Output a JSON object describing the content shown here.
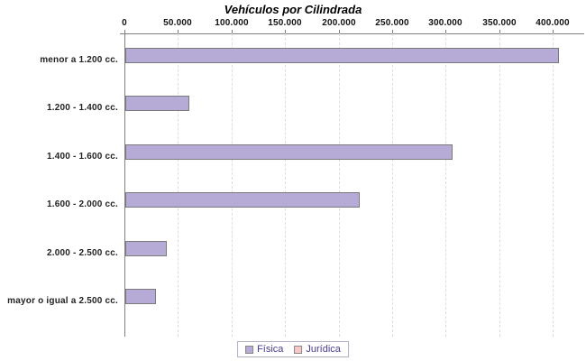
{
  "title": "Vehículos por Cilindrada",
  "chart_data": {
    "type": "bar",
    "orientation": "horizontal",
    "title": "Vehículos por Cilindrada",
    "categories": [
      "menor a 1.200 cc.",
      "1.200 - 1.400 cc.",
      "1.400 - 1.600 cc.",
      "1.600 - 2.000 cc.",
      "2.000 - 2.500 cc.",
      "mayor o igual a 2.500 cc."
    ],
    "series": [
      {
        "name": "Física",
        "color": "#b6abd6",
        "values": [
          405000,
          60000,
          306000,
          219000,
          39000,
          29000
        ]
      },
      {
        "name": "Jurídica",
        "color": "#f8c8c8",
        "values": [
          0,
          0,
          0,
          0,
          0,
          0
        ]
      }
    ],
    "x_axis": {
      "position": "top",
      "ticks": [
        0,
        50000,
        100000,
        150000,
        200000,
        250000,
        300000,
        350000,
        400000
      ],
      "tick_labels": [
        "0",
        "50.000",
        "100.000",
        "150.000",
        "200.000",
        "250.000",
        "300.000",
        "350.000",
        "400.000"
      ],
      "range": [
        0,
        429000
      ],
      "grid": "dashed"
    },
    "legend_position": "bottom"
  },
  "legend": {
    "items": [
      {
        "label": "Física",
        "color": "#b6abd6"
      },
      {
        "label": "Jurídica",
        "color": "#f8c8c8"
      }
    ]
  },
  "colors": {
    "bar_border": "#7a7a7a",
    "axis": "#808080",
    "grid": "#dcdce2",
    "legend_text": "#4a3a8c"
  }
}
